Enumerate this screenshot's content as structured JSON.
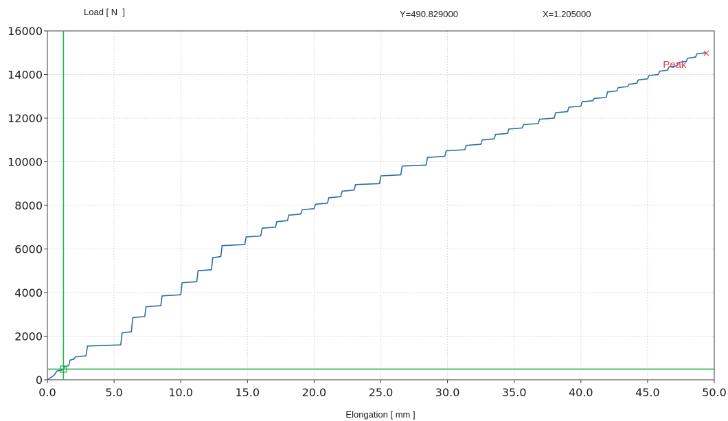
{
  "chart_data": {
    "type": "line",
    "ylabel": "Load [ N  ]",
    "xlabel": "Elongation [ mm ]",
    "xlim": [
      0,
      50
    ],
    "ylim": [
      0,
      16000
    ],
    "x_ticks": [
      0,
      5,
      10,
      15,
      20,
      25,
      30,
      35,
      40,
      45,
      50
    ],
    "y_ticks": [
      0,
      2000,
      4000,
      6000,
      8000,
      10000,
      12000,
      14000,
      16000
    ],
    "x_tick_labels": [
      "0.0",
      "5.0",
      "10.0",
      "15.0",
      "20.0",
      "25.0",
      "30.0",
      "35.0",
      "40.0",
      "45.0",
      "50.0"
    ],
    "y_tick_labels": [
      "0",
      "2000",
      "4000",
      "6000",
      "8000",
      "10000",
      "12000",
      "14000",
      "16000"
    ],
    "grid": true,
    "readout": {
      "y_text": "Y=490.829000",
      "x_text": "X=1.205000"
    },
    "cursor": {
      "x": 1.205,
      "y": 490.829
    },
    "peak": {
      "label": "Peak",
      "x": 49.4,
      "y": 15000
    },
    "series": [
      {
        "color": "#2a6ea8",
        "x": [
          0,
          0.5,
          0.7,
          1.1,
          1.2,
          1.3,
          1.6,
          1.7,
          2.0,
          2.1,
          2.9,
          3.0,
          5.5,
          5.6,
          6.3,
          6.4,
          7.3,
          7.4,
          8.5,
          8.6,
          10.0,
          10.1,
          11.2,
          11.3,
          12.3,
          12.4,
          13.0,
          13.1,
          14.8,
          14.9,
          16.0,
          16.1,
          17.1,
          17.2,
          18.0,
          18.1,
          19.0,
          19.1,
          20.0,
          20.1,
          21.0,
          21.1,
          22.0,
          22.1,
          23.0,
          23.1,
          24.9,
          25.0,
          26.5,
          26.6,
          28.4,
          28.5,
          29.8,
          29.9,
          31.3,
          31.4,
          32.5,
          32.6,
          33.5,
          33.6,
          34.5,
          34.6,
          35.6,
          35.7,
          36.8,
          36.9,
          38.0,
          38.1,
          39.0,
          39.1,
          40.0,
          40.1,
          40.9,
          41.0,
          41.9,
          42.0,
          42.7,
          42.8,
          43.5,
          43.6,
          44.2,
          44.3,
          45.0,
          45.1,
          45.8,
          45.9,
          46.5,
          46.6,
          47.2,
          47.3,
          47.9,
          48.0,
          48.6,
          48.7,
          49.4
        ],
        "y": [
          0,
          200,
          400,
          450,
          490,
          600,
          650,
          900,
          950,
          1050,
          1100,
          1550,
          1600,
          2150,
          2200,
          2850,
          2900,
          3350,
          3400,
          3850,
          3900,
          4450,
          4500,
          5000,
          5050,
          5600,
          5650,
          6150,
          6200,
          6550,
          6600,
          6950,
          7000,
          7250,
          7300,
          7550,
          7600,
          7800,
          7850,
          8050,
          8100,
          8350,
          8400,
          8650,
          8700,
          8950,
          9000,
          9350,
          9400,
          9800,
          9850,
          10200,
          10250,
          10500,
          10550,
          10750,
          10800,
          11000,
          11050,
          11250,
          11300,
          11500,
          11550,
          11700,
          11750,
          11950,
          12000,
          12250,
          12300,
          12500,
          12550,
          12750,
          12800,
          12900,
          12950,
          13200,
          13250,
          13400,
          13450,
          13550,
          13600,
          13750,
          13800,
          13950,
          14000,
          14150,
          14200,
          14350,
          14400,
          14550,
          14600,
          14750,
          14800,
          14950,
          15000
        ]
      }
    ]
  },
  "colors": {
    "line": "#2a6ea8",
    "cursor": "#2bb24c",
    "peak": "#d9434b",
    "grid": "#d8d8d8",
    "axis": "#3a3a3a"
  }
}
